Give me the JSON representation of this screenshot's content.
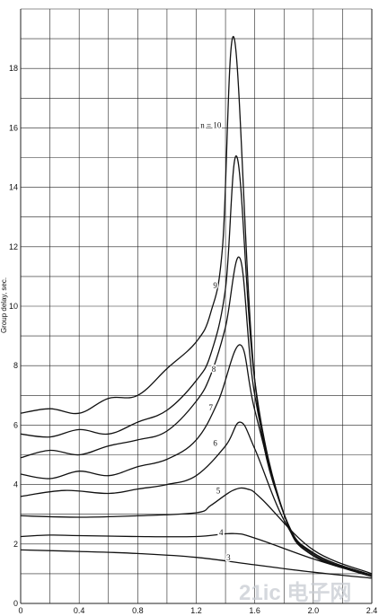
{
  "chart_data": {
    "type": "line",
    "title": "",
    "xlabel": "",
    "ylabel": "Group delay, sec.",
    "xlim": [
      0,
      2.4
    ],
    "ylim": [
      0,
      20
    ],
    "x_ticks": [
      "0",
      "0.4",
      "0.8",
      "1.2",
      "1.6",
      "2.0",
      "2.4"
    ],
    "y_ticks": [
      "0",
      "2",
      "4",
      "6",
      "8",
      "10",
      "12",
      "14",
      "16",
      "18"
    ],
    "grid": true,
    "series": [
      {
        "name": "3",
        "x": [
          0,
          0.4,
          0.8,
          1.2,
          1.6,
          2.0,
          2.4
        ],
        "y": [
          1.8,
          1.75,
          1.68,
          1.55,
          1.3,
          1.05,
          0.85
        ]
      },
      {
        "name": "4",
        "x": [
          0,
          0.2,
          0.4,
          0.8,
          1.2,
          1.45,
          1.6,
          2.0,
          2.4
        ],
        "y": [
          2.25,
          2.3,
          2.28,
          2.25,
          2.25,
          2.35,
          2.2,
          1.5,
          0.9
        ]
      },
      {
        "name": "5",
        "x": [
          0,
          0.4,
          0.8,
          1.2,
          1.3,
          1.45,
          1.55,
          1.65,
          2.0,
          2.4
        ],
        "y": [
          2.95,
          2.9,
          2.95,
          3.05,
          3.3,
          3.8,
          3.85,
          3.5,
          1.8,
          1.0
        ]
      },
      {
        "name": "6",
        "x": [
          0,
          0.3,
          0.6,
          0.8,
          1.0,
          1.2,
          1.4,
          1.5,
          1.6,
          1.8,
          2.0,
          2.4
        ],
        "y": [
          3.6,
          3.8,
          3.7,
          3.85,
          4.0,
          4.3,
          5.3,
          6.1,
          5.2,
          2.8,
          1.6,
          0.95
        ]
      },
      {
        "name": "7",
        "x": [
          0,
          0.2,
          0.4,
          0.6,
          0.8,
          1.0,
          1.2,
          1.35,
          1.5,
          1.6,
          1.8,
          2.0,
          2.4
        ],
        "y": [
          4.35,
          4.2,
          4.45,
          4.3,
          4.6,
          4.85,
          5.5,
          6.8,
          8.7,
          6.5,
          3.0,
          1.65,
          0.95
        ]
      },
      {
        "name": "8",
        "x": [
          0,
          0.2,
          0.4,
          0.6,
          0.8,
          1.0,
          1.2,
          1.3,
          1.4,
          1.5,
          1.6,
          1.8,
          2.0,
          2.4
        ],
        "y": [
          4.9,
          5.15,
          5.0,
          5.3,
          5.5,
          5.8,
          6.8,
          7.7,
          9.3,
          11.6,
          7.0,
          3.0,
          1.7,
          0.95
        ]
      },
      {
        "name": "9",
        "x": [
          0,
          0.2,
          0.4,
          0.6,
          0.8,
          1.0,
          1.2,
          1.3,
          1.4,
          1.48,
          1.6,
          1.8,
          2.0,
          2.4
        ],
        "y": [
          5.7,
          5.6,
          5.85,
          5.7,
          6.1,
          6.5,
          7.5,
          8.4,
          10.6,
          15.0,
          7.5,
          3.0,
          1.7,
          0.95
        ]
      },
      {
        "name": "n = 10",
        "x": [
          0,
          0.2,
          0.4,
          0.6,
          0.8,
          1.0,
          1.2,
          1.3,
          1.38,
          1.46,
          1.6,
          1.8,
          2.0,
          2.4
        ],
        "y": [
          6.4,
          6.55,
          6.4,
          6.9,
          7.0,
          7.9,
          8.8,
          9.8,
          12.0,
          19.0,
          7.5,
          3.0,
          1.6,
          0.95
        ]
      }
    ],
    "curve_labels": [
      {
        "text": "n = 10",
        "x": 1.3,
        "y": 16.0
      },
      {
        "text": "9",
        "x": 1.33,
        "y": 10.6
      },
      {
        "text": "8",
        "x": 1.32,
        "y": 7.8
      },
      {
        "text": "7",
        "x": 1.3,
        "y": 6.5
      },
      {
        "text": "6",
        "x": 1.33,
        "y": 5.3
      },
      {
        "text": "5",
        "x": 1.35,
        "y": 3.7
      },
      {
        "text": "4",
        "x": 1.37,
        "y": 2.3
      },
      {
        "text": "3",
        "x": 1.42,
        "y": 1.45
      }
    ]
  },
  "watermark": {
    "text": "21ic 电子网"
  }
}
